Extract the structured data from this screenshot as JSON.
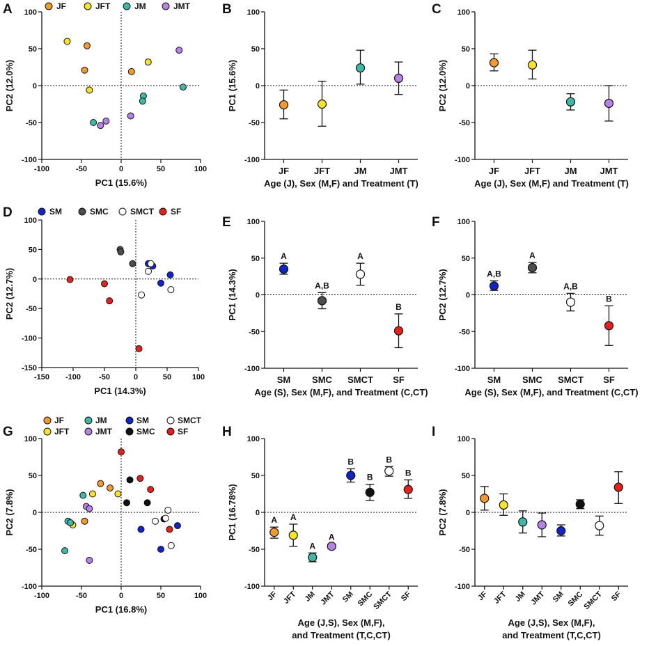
{
  "colors": {
    "orange": "#f29a2e",
    "yellow": "#f7e32d",
    "teal": "#3fb8a6",
    "purple": "#b582e6",
    "blue": "#1024c8",
    "darkgray": "#4d4d4d",
    "white": "#ffffff",
    "red": "#e3211e",
    "black": "#111111"
  },
  "chart_data": [
    {
      "panel": "A",
      "type": "scatter",
      "xlabel": "PC1 (15.6%)",
      "ylabel": "PC2 (12.0%)",
      "xlim": [
        -100,
        100
      ],
      "ylim": [
        -100,
        100
      ],
      "xticks": [
        -100,
        -50,
        0,
        50,
        100
      ],
      "yticks": [
        -100,
        -50,
        0,
        50,
        100
      ],
      "legend": [
        {
          "label": "JF",
          "color": "orange"
        },
        {
          "label": "JFT",
          "color": "yellow"
        },
        {
          "label": "JM",
          "color": "teal"
        },
        {
          "label": "JMT",
          "color": "purple"
        }
      ],
      "points": [
        {
          "group": "JF",
          "x": -43,
          "y": 54
        },
        {
          "group": "JF",
          "x": -46,
          "y": 21
        },
        {
          "group": "JF",
          "x": 13,
          "y": 19
        },
        {
          "group": "JFT",
          "x": -68,
          "y": 60
        },
        {
          "group": "JFT",
          "x": -40,
          "y": -6
        },
        {
          "group": "JFT",
          "x": 34,
          "y": 32
        },
        {
          "group": "JM",
          "x": 28,
          "y": -14
        },
        {
          "group": "JM",
          "x": 27,
          "y": -21
        },
        {
          "group": "JM",
          "x": -35,
          "y": -50
        },
        {
          "group": "JM",
          "x": 78,
          "y": -2
        },
        {
          "group": "JMT",
          "x": 73,
          "y": 48
        },
        {
          "group": "JMT",
          "x": 12,
          "y": -41
        },
        {
          "group": "JMT",
          "x": -26,
          "y": -54
        },
        {
          "group": "JMT",
          "x": -19,
          "y": -48
        }
      ]
    },
    {
      "panel": "B",
      "type": "errorbar",
      "xlabel": "Age (J), Sex (M,F) and Treatment (T)",
      "ylabel": "PC1 (15.6%)",
      "ylim": [
        -100,
        100
      ],
      "yticks": [
        -100,
        -50,
        0,
        50,
        100
      ],
      "categories": [
        "JF",
        "JFT",
        "JM",
        "JMT"
      ],
      "series": [
        {
          "category": "JF",
          "color": "orange",
          "mean": -26,
          "lo": -45,
          "hi": -6
        },
        {
          "category": "JFT",
          "color": "yellow",
          "mean": -25,
          "lo": -55,
          "hi": 6
        },
        {
          "category": "JM",
          "color": "teal",
          "mean": 24,
          "lo": 2,
          "hi": 48
        },
        {
          "category": "JMT",
          "color": "purple",
          "mean": 10,
          "lo": -12,
          "hi": 32
        }
      ]
    },
    {
      "panel": "C",
      "type": "errorbar",
      "xlabel": "Age (J), Sex (M,F) and Treatment (T)",
      "ylabel": "PC2 (12.0%)",
      "ylim": [
        -100,
        100
      ],
      "yticks": [
        -100,
        -50,
        0,
        50,
        100
      ],
      "categories": [
        "JF",
        "JFT",
        "JM",
        "JMT"
      ],
      "series": [
        {
          "category": "JF",
          "color": "orange",
          "mean": 31,
          "lo": 20,
          "hi": 43
        },
        {
          "category": "JFT",
          "color": "yellow",
          "mean": 28,
          "lo": 9,
          "hi": 48
        },
        {
          "category": "JM",
          "color": "teal",
          "mean": -22,
          "lo": -33,
          "hi": -11
        },
        {
          "category": "JMT",
          "color": "purple",
          "mean": -24,
          "lo": -48,
          "hi": 0
        }
      ]
    },
    {
      "panel": "D",
      "type": "scatter",
      "xlabel": "PC1 (14.3%)",
      "ylabel": "PC2 (12.7%)",
      "xlim": [
        -150,
        100
      ],
      "ylim": [
        -150,
        100
      ],
      "xticks": [
        -150,
        -100,
        -50,
        0,
        50,
        100
      ],
      "yticks": [
        -150,
        -100,
        -50,
        0,
        50,
        100
      ],
      "legend": [
        {
          "label": "SM",
          "color": "blue"
        },
        {
          "label": "SMC",
          "color": "darkgray"
        },
        {
          "label": "SMCT",
          "color": "white"
        },
        {
          "label": "SF",
          "color": "red"
        }
      ],
      "points": [
        {
          "group": "SM",
          "x": 20,
          "y": 26
        },
        {
          "group": "SM",
          "x": 27,
          "y": 22
        },
        {
          "group": "SM",
          "x": 55,
          "y": 7
        },
        {
          "group": "SM",
          "x": 40,
          "y": -7
        },
        {
          "group": "SMC",
          "x": -25,
          "y": 50
        },
        {
          "group": "SMC",
          "x": -24,
          "y": 46
        },
        {
          "group": "SMC",
          "x": -5,
          "y": 26
        },
        {
          "group": "SMCT",
          "x": 24,
          "y": 26
        },
        {
          "group": "SMCT",
          "x": 20,
          "y": 13
        },
        {
          "group": "SMCT",
          "x": 56,
          "y": -18
        },
        {
          "group": "SMCT",
          "x": 9,
          "y": -27
        },
        {
          "group": "SF",
          "x": -105,
          "y": -1
        },
        {
          "group": "SF",
          "x": -50,
          "y": -8
        },
        {
          "group": "SF",
          "x": -42,
          "y": -37
        },
        {
          "group": "SF",
          "x": 5,
          "y": -118
        }
      ]
    },
    {
      "panel": "E",
      "type": "errorbar",
      "xlabel": "Age (S), Sex (M,F), and Treatment (C,CT)",
      "ylabel": "PC1 (14.3%)",
      "ylim": [
        -100,
        100
      ],
      "yticks": [
        -100,
        -50,
        0,
        50,
        100
      ],
      "categories": [
        "SM",
        "SMC",
        "SMCT",
        "SF"
      ],
      "series": [
        {
          "category": "SM",
          "color": "blue",
          "mean": 35,
          "lo": 28,
          "hi": 43,
          "sig": "A"
        },
        {
          "category": "SMC",
          "color": "darkgray",
          "mean": -8,
          "lo": -19,
          "hi": 3,
          "sig": "A,B"
        },
        {
          "category": "SMCT",
          "color": "white",
          "mean": 28,
          "lo": 13,
          "hi": 43,
          "sig": "A"
        },
        {
          "category": "SF",
          "color": "red",
          "mean": -49,
          "lo": -72,
          "hi": -26,
          "sig": "B"
        }
      ]
    },
    {
      "panel": "F",
      "type": "errorbar",
      "xlabel": "Age (S), Sex (M,F), and Treatment (C,CT)",
      "ylabel": "PC2 (12.7%)",
      "ylim": [
        -100,
        100
      ],
      "yticks": [
        -100,
        -50,
        0,
        50,
        100
      ],
      "categories": [
        "SM",
        "SMC",
        "SMCT",
        "SF"
      ],
      "series": [
        {
          "category": "SM",
          "color": "blue",
          "mean": 12,
          "lo": 6,
          "hi": 19,
          "sig": "A,B"
        },
        {
          "category": "SMC",
          "color": "darkgray",
          "mean": 37,
          "lo": 30,
          "hi": 44,
          "sig": "A"
        },
        {
          "category": "SMCT",
          "color": "white",
          "mean": -10,
          "lo": -22,
          "hi": 2,
          "sig": "A,B"
        },
        {
          "category": "SF",
          "color": "red",
          "mean": -42,
          "lo": -69,
          "hi": -15,
          "sig": "B"
        }
      ]
    },
    {
      "panel": "G",
      "type": "scatter",
      "xlabel": "PC1 (16.8%)",
      "ylabel": "PC2 (7.8%)",
      "xlim": [
        -100,
        100
      ],
      "ylim": [
        -100,
        100
      ],
      "xticks": [
        -100,
        -50,
        0,
        50,
        100
      ],
      "yticks": [
        -100,
        -50,
        0,
        50,
        100
      ],
      "legend": [
        {
          "label": "JF",
          "color": "orange"
        },
        {
          "label": "JM",
          "color": "teal"
        },
        {
          "label": "SM",
          "color": "blue"
        },
        {
          "label": "SMCT",
          "color": "white"
        },
        {
          "label": "JFT",
          "color": "yellow"
        },
        {
          "label": "JMT",
          "color": "purple"
        },
        {
          "label": "SMC",
          "color": "black"
        },
        {
          "label": "SF",
          "color": "red"
        }
      ],
      "points": [
        {
          "group": "JF",
          "x": -26,
          "y": 39
        },
        {
          "group": "JF",
          "x": -14,
          "y": 33
        },
        {
          "group": "JF",
          "x": -46,
          "y": -12
        },
        {
          "group": "JFT",
          "x": -36,
          "y": 25
        },
        {
          "group": "JFT",
          "x": -4,
          "y": 25
        },
        {
          "group": "JFT",
          "x": -61,
          "y": -17
        },
        {
          "group": "JM",
          "x": -48,
          "y": 23
        },
        {
          "group": "JM",
          "x": -67,
          "y": -12
        },
        {
          "group": "JM",
          "x": -64,
          "y": -14
        },
        {
          "group": "JM",
          "x": -71,
          "y": -52
        },
        {
          "group": "JMT",
          "x": -44,
          "y": 8
        },
        {
          "group": "JMT",
          "x": -40,
          "y": 5
        },
        {
          "group": "JMT",
          "x": -40,
          "y": -65
        },
        {
          "group": "SM",
          "x": 25,
          "y": -23
        },
        {
          "group": "SM",
          "x": 50,
          "y": -50
        },
        {
          "group": "SM",
          "x": 71,
          "y": -18
        },
        {
          "group": "SMC",
          "x": 11,
          "y": 44
        },
        {
          "group": "SMC",
          "x": 7,
          "y": 13
        },
        {
          "group": "SMC",
          "x": 33,
          "y": 13
        },
        {
          "group": "SMC",
          "x": 54,
          "y": -9
        },
        {
          "group": "SMCT",
          "x": 59,
          "y": 3
        },
        {
          "group": "SMCT",
          "x": 43,
          "y": -12
        },
        {
          "group": "SMCT",
          "x": 56,
          "y": -8
        },
        {
          "group": "SMCT",
          "x": 63,
          "y": -45
        },
        {
          "group": "SF",
          "x": 0,
          "y": 82
        },
        {
          "group": "SF",
          "x": 24,
          "y": 46
        },
        {
          "group": "SF",
          "x": 37,
          "y": 31
        },
        {
          "group": "SF",
          "x": 61,
          "y": -23
        }
      ]
    },
    {
      "panel": "H",
      "type": "errorbar",
      "xlabel": [
        "Age (J,S), Sex (M,F),",
        "and Treatment (T,C,CT)"
      ],
      "ylabel": "PC1 (16.78%)",
      "ylim": [
        -100,
        100
      ],
      "yticks": [
        -100,
        -50,
        0,
        50,
        100
      ],
      "categories": [
        "JF",
        "JFT",
        "JM",
        "JMT",
        "SM",
        "SMC",
        "SMCT",
        "SF"
      ],
      "series": [
        {
          "category": "JF",
          "color": "orange",
          "mean": -27,
          "lo": -35,
          "hi": -20,
          "sig": "A"
        },
        {
          "category": "JFT",
          "color": "yellow",
          "mean": -31,
          "lo": -46,
          "hi": -16,
          "sig": "A"
        },
        {
          "category": "JM",
          "color": "teal",
          "mean": -61,
          "lo": -67,
          "hi": -55,
          "sig": "A"
        },
        {
          "category": "JMT",
          "color": "purple",
          "mean": -46,
          "lo": -49,
          "hi": -43,
          "sig": "A"
        },
        {
          "category": "SM",
          "color": "blue",
          "mean": 50,
          "lo": 41,
          "hi": 59,
          "sig": "B"
        },
        {
          "category": "SMC",
          "color": "black",
          "mean": 27,
          "lo": 16,
          "hi": 38,
          "sig": "B"
        },
        {
          "category": "SMCT",
          "color": "white",
          "mean": 56,
          "lo": 49,
          "hi": 62,
          "sig": "B"
        },
        {
          "category": "SF",
          "color": "red",
          "mean": 31,
          "lo": 19,
          "hi": 44,
          "sig": "B"
        }
      ]
    },
    {
      "panel": "I",
      "type": "errorbar",
      "xlabel": [
        "Age (J,S), Sex (M,F),",
        "and Treatment (T,C,CT)"
      ],
      "ylabel": "PC2 (7.8%)",
      "ylim": [
        -100,
        100
      ],
      "yticks": [
        -100,
        -50,
        0,
        50,
        100
      ],
      "categories": [
        "JF",
        "JFT",
        "JM",
        "JMT",
        "SM",
        "SMC",
        "SMCT",
        "SF"
      ],
      "series": [
        {
          "category": "JF",
          "color": "orange",
          "mean": 19,
          "lo": 3,
          "hi": 35
        },
        {
          "category": "JFT",
          "color": "yellow",
          "mean": 10,
          "lo": -4,
          "hi": 25
        },
        {
          "category": "JM",
          "color": "teal",
          "mean": -13,
          "lo": -28,
          "hi": 2
        },
        {
          "category": "JMT",
          "color": "purple",
          "mean": -17,
          "lo": -33,
          "hi": -1
        },
        {
          "category": "SM",
          "color": "blue",
          "mean": -25,
          "lo": -32,
          "hi": -17
        },
        {
          "category": "SMC",
          "color": "black",
          "mean": 11,
          "lo": 5,
          "hi": 17
        },
        {
          "category": "SMCT",
          "color": "white",
          "mean": -18,
          "lo": -31,
          "hi": -5
        },
        {
          "category": "SF",
          "color": "red",
          "mean": 34,
          "lo": 12,
          "hi": 55
        }
      ]
    }
  ]
}
